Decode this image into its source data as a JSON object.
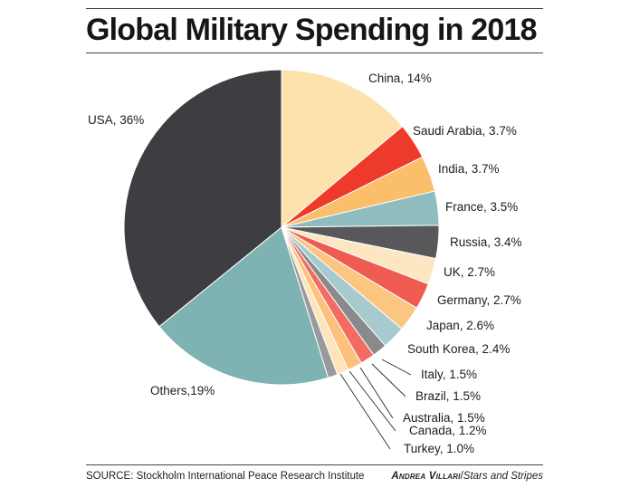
{
  "credit": {
    "name": "Andrea Villari",
    "separator": "/",
    "organization": "Stars and Stripes"
  },
  "chart_data": {
    "type": "pie",
    "title": "Global Military Spending in 2018",
    "source": "SOURCE: Stockholm International Peace Research Institute",
    "unit": "%",
    "start": "12 o'clock, clockwise",
    "slices": [
      {
        "name": "China",
        "value": 14,
        "label": "China, 14%",
        "color": "#fde2ae"
      },
      {
        "name": "Saudi Arabia",
        "value": 3.7,
        "label": "Saudi Arabia, 3.7%",
        "color": "#ee3a2a"
      },
      {
        "name": "India",
        "value": 3.7,
        "label": "India, 3.7%",
        "color": "#fbbf6c"
      },
      {
        "name": "France",
        "value": 3.5,
        "label": "France, 3.5%",
        "color": "#8fbcbf"
      },
      {
        "name": "Russia",
        "value": 3.4,
        "label": "Russia, 3.4%",
        "color": "#58585b"
      },
      {
        "name": "UK",
        "value": 2.7,
        "label": "UK, 2.7%",
        "color": "#fde7c3"
      },
      {
        "name": "Germany",
        "value": 2.7,
        "label": "Germany, 2.7%",
        "color": "#ee5b50"
      },
      {
        "name": "Japan",
        "value": 2.6,
        "label": "Japan, 2.6%",
        "color": "#fcc681"
      },
      {
        "name": "South Korea",
        "value": 2.4,
        "label": "South Korea, 2.4%",
        "color": "#a7cbcd"
      },
      {
        "name": "Italy",
        "value": 1.5,
        "label": "Italy, 1.5%",
        "color": "#8a8a8d"
      },
      {
        "name": "Brazil",
        "value": 1.5,
        "label": "Brazil, 1.5%",
        "color": "#f26c62"
      },
      {
        "name": "Australia",
        "value": 1.5,
        "label": "Australia, 1.5%",
        "color": "#fcc27b"
      },
      {
        "name": "Canada",
        "value": 1.2,
        "label": "Canada, 1.2%",
        "color": "#fde5bb"
      },
      {
        "name": "Turkey",
        "value": 1.0,
        "label": "Turkey, 1.0%",
        "color": "#9a9a9d"
      },
      {
        "name": "Others",
        "value": 19,
        "label": "Others,19%",
        "color": "#7eb2b3"
      },
      {
        "name": "USA",
        "value": 36,
        "label": "USA, 36%",
        "color": "#3e3e42"
      }
    ]
  }
}
